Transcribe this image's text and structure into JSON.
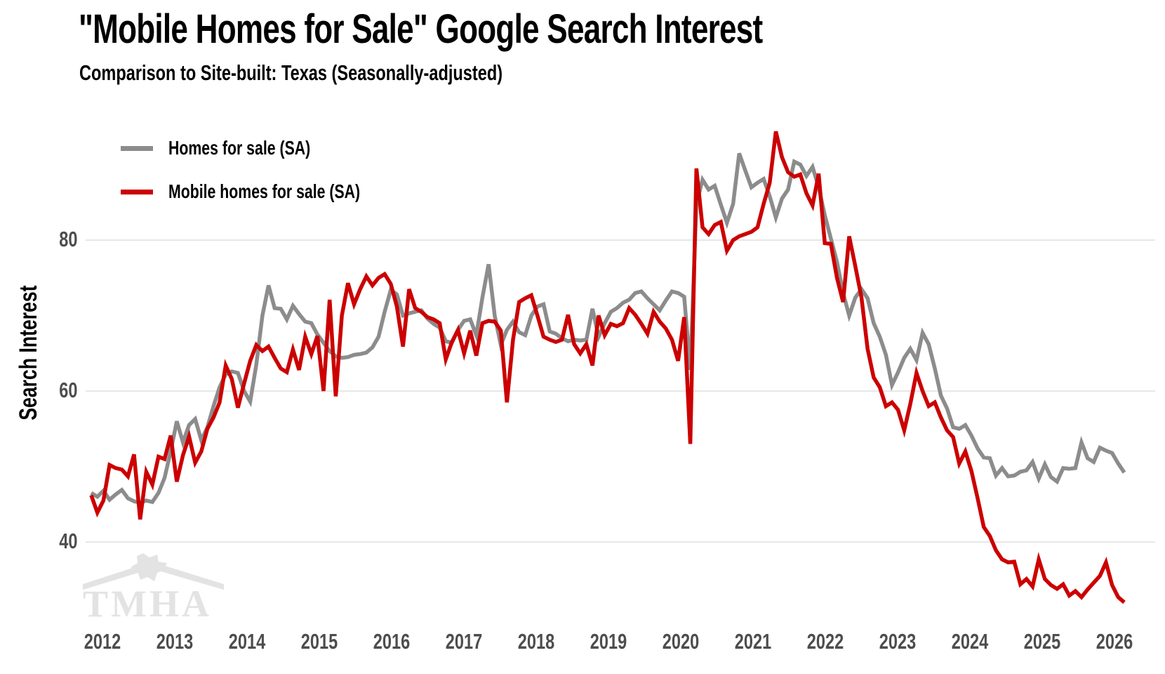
{
  "title": "\"Mobile Homes for Sale\" Google Search Interest",
  "subtitle": "Comparison to Site-built: Texas (Seasonally-adjusted)",
  "watermark": "TMHA",
  "y_axis": {
    "label": "Search Interest",
    "ticks": [
      40,
      60,
      80
    ]
  },
  "x_axis": {
    "ticks": [
      2012,
      2013,
      2014,
      2015,
      2016,
      2017,
      2018,
      2019,
      2020,
      2021,
      2022,
      2023,
      2024,
      2025,
      2026
    ]
  },
  "legend": [
    {
      "label": "Homes for sale (SA)",
      "color": "#8c8c8c"
    },
    {
      "label": "Mobile homes for sale (SA)",
      "color": "#cc0000"
    }
  ],
  "colors": {
    "grid": "#e9e9e9",
    "tick_text": "#4d4d4d",
    "watermark": "#e3e3e3"
  },
  "chart_data": {
    "type": "line",
    "title": "\"Mobile Homes for Sale\" Google Search Interest",
    "subtitle": "Comparison to Site-built: Texas (Seasonally-adjusted)",
    "xlabel": "",
    "ylabel": "Search Interest",
    "x_start_year": 2012,
    "x_step_months": 1,
    "x_end": "2026-02",
    "ylim": [
      30,
      97
    ],
    "y_ticks": [
      40,
      60,
      80
    ],
    "x_tick_labels": [
      "2012",
      "2013",
      "2014",
      "2015",
      "2016",
      "2017",
      "2018",
      "2019",
      "2020",
      "2021",
      "2022",
      "2023",
      "2024",
      "2025",
      "2026"
    ],
    "grid": "horizontal-only",
    "legend_position": "top-left-inside",
    "series": [
      {
        "name": "Homes for sale (SA)",
        "color": "#8c8c8c",
        "values": [
          46.5,
          46.0,
          46.8,
          45.6,
          46.3,
          46.9,
          45.8,
          45.4,
          45.2,
          45.5,
          45.3,
          46.5,
          48.5,
          52.0,
          56.0,
          53.2,
          55.5,
          56.3,
          53.5,
          55.2,
          58.0,
          60.5,
          62.2,
          62.6,
          62.4,
          60.0,
          58.6,
          63.5,
          70.0,
          74.0,
          71.0,
          70.9,
          69.5,
          71.3,
          70.2,
          69.2,
          69.0,
          67.5,
          66.4,
          65.3,
          64.6,
          64.4,
          64.5,
          64.8,
          64.9,
          65.1,
          65.8,
          67.2,
          70.5,
          73.4,
          72.8,
          70.0,
          70.3,
          70.5,
          70.7,
          69.6,
          68.9,
          68.4,
          66.6,
          66.4,
          68.1,
          69.3,
          69.5,
          67.4,
          72.4,
          76.8,
          70.0,
          66.1,
          68.1,
          69.2,
          67.8,
          67.4,
          70.0,
          71.2,
          71.5,
          67.9,
          67.6,
          67.0,
          66.6,
          66.8,
          66.7,
          66.8,
          70.9,
          67.2,
          69.0,
          70.5,
          71.0,
          71.7,
          72.1,
          73.0,
          73.2,
          72.3,
          71.5,
          70.7,
          72.0,
          73.2,
          73.0,
          72.5,
          62.8,
          84.8,
          88.0,
          86.7,
          87.2,
          84.7,
          82.3,
          84.8,
          91.5,
          89.2,
          87.0,
          87.6,
          88.1,
          85.8,
          83.0,
          85.5,
          86.7,
          90.4,
          90.0,
          88.5,
          89.7,
          87.0,
          83.3,
          80.2,
          77.1,
          73.0,
          70.0,
          72.4,
          73.5,
          72.3,
          69.0,
          67.2,
          64.8,
          60.8,
          62.5,
          64.4,
          65.6,
          64.1,
          67.7,
          66.2,
          63.0,
          59.4,
          57.7,
          55.2,
          55.0,
          55.5,
          54.1,
          52.4,
          51.2,
          51.1,
          48.8,
          49.8,
          48.7,
          48.8,
          49.3,
          49.5,
          50.6,
          48.4,
          50.3,
          48.6,
          48.0,
          49.8,
          49.7,
          49.8,
          53.2,
          51.1,
          50.6,
          52.5,
          52.1,
          51.8,
          50.4,
          49.2
        ]
      },
      {
        "name": "Mobile homes for sale (SA)",
        "color": "#cc0000",
        "values": [
          46.2,
          43.9,
          45.5,
          50.2,
          49.8,
          49.6,
          48.7,
          51.6,
          43.0,
          49.3,
          47.6,
          51.3,
          51.0,
          54.1,
          48.0,
          51.5,
          54.0,
          50.5,
          52.0,
          55.0,
          56.5,
          58.5,
          63.4,
          61.6,
          57.8,
          61.0,
          64.0,
          66.1,
          65.3,
          65.9,
          64.4,
          63.0,
          62.5,
          65.5,
          62.8,
          67.2,
          64.9,
          67.3,
          60.0,
          72.1,
          59.3,
          70.0,
          74.3,
          71.5,
          73.5,
          75.2,
          74.0,
          75.0,
          75.5,
          74.2,
          71.2,
          65.9,
          73.5,
          71.0,
          70.5,
          69.8,
          69.5,
          69.0,
          64.2,
          66.5,
          68.1,
          65.0,
          68.0,
          64.7,
          69.0,
          69.3,
          69.2,
          68.0,
          58.5,
          66.8,
          71.8,
          72.3,
          72.7,
          70.0,
          67.2,
          66.8,
          66.5,
          66.8,
          70.1,
          66.2,
          65.0,
          66.2,
          63.4,
          70.0,
          67.4,
          68.9,
          68.6,
          69.0,
          71.0,
          70.1,
          68.9,
          67.6,
          70.5,
          69.2,
          68.3,
          66.8,
          64.0,
          69.8,
          53.0,
          89.5,
          81.7,
          80.8,
          82.0,
          82.4,
          78.6,
          80.0,
          80.5,
          80.8,
          81.1,
          81.7,
          84.8,
          87.6,
          94.4,
          91.0,
          89.0,
          88.4,
          88.7,
          86.2,
          84.6,
          88.8,
          79.6,
          79.5,
          75.0,
          71.8,
          80.5,
          76.5,
          72.4,
          65.6,
          61.8,
          60.5,
          58.0,
          58.5,
          57.5,
          54.8,
          58.3,
          62.4,
          60.0,
          58.0,
          58.5,
          56.5,
          54.8,
          53.9,
          50.4,
          52.0,
          49.4,
          45.8,
          42.0,
          40.8,
          38.9,
          37.7,
          37.3,
          37.4,
          34.4,
          35.1,
          34.1,
          37.7,
          35.1,
          34.3,
          33.8,
          34.4,
          32.9,
          33.5,
          32.7,
          33.7,
          34.6,
          35.5,
          37.3,
          34.3,
          32.7,
          32.0
        ]
      }
    ]
  }
}
